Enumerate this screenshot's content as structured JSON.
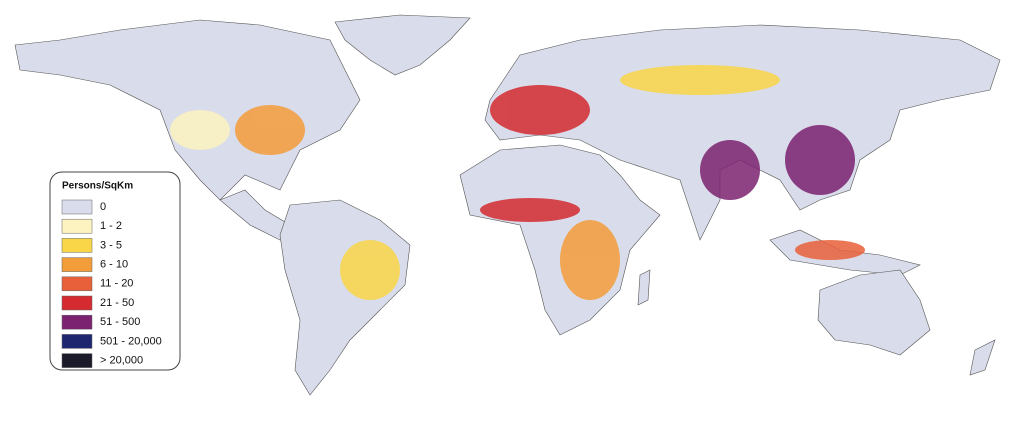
{
  "legend": {
    "title": "Persons/SqKm",
    "items": [
      {
        "label": "0",
        "color": "#d9dcea"
      },
      {
        "label": "1 - 2",
        "color": "#fdf3c0"
      },
      {
        "label": "3 - 5",
        "color": "#f9d648"
      },
      {
        "label": "6 - 10",
        "color": "#f39c3a"
      },
      {
        "label": "11 - 20",
        "color": "#e8603a"
      },
      {
        "label": "21 - 50",
        "color": "#d42a30"
      },
      {
        "label": "51 - 500",
        "color": "#7b2270"
      },
      {
        "label": "501 - 20,000",
        "color": "#1f2670"
      },
      {
        "label": "> 20,000",
        "color": "#1a1a2a"
      }
    ]
  }
}
